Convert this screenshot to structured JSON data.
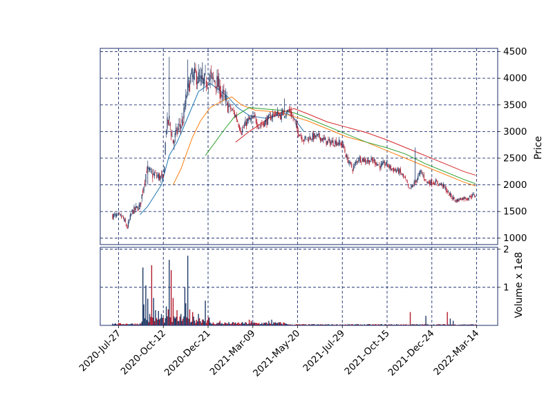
{
  "chart_data": {
    "type": "candlestick",
    "colors": {
      "up": "#1f3a68",
      "down": "#b2182b",
      "grid": "#1a2e6e",
      "frame": "#1a2e6e",
      "ma_short": "#1f77b4",
      "ma_mid": "#ff7f0e",
      "ma_long": "#2ca02c",
      "ma_longest": "#d62728"
    },
    "price_panel": {
      "ylabel": "Price",
      "ylim": [
        880,
        4560
      ],
      "yticks": [
        1000,
        1500,
        2000,
        2500,
        3000,
        3500,
        4000,
        4500
      ],
      "grid": true,
      "grid_style": "dashed"
    },
    "volume_panel": {
      "ylabel": "Volume x 1e8",
      "ylim": [
        0,
        2.05
      ],
      "yticks": [
        1,
        2
      ],
      "grid": true,
      "grid_style": "dashed"
    },
    "x_axis": {
      "start_date": "2020-07-14",
      "end_date": "2022-03-18",
      "tick_labels": [
        "2020-Jul-27",
        "2020-Oct-12",
        "2020-Dec-21",
        "2021-Mar-09",
        "2021-May-20",
        "2021-Jul-29",
        "2021-Oct-15",
        "2021-Dec-24",
        "2022-Mar-14"
      ],
      "tick_positions": [
        10,
        63,
        116,
        169,
        222,
        275,
        328,
        381,
        434
      ]
    },
    "price_path": [
      [
        0,
        1420
      ],
      [
        10,
        1400
      ],
      [
        15,
        1200
      ],
      [
        20,
        1500
      ],
      [
        28,
        1600
      ],
      [
        35,
        2300
      ],
      [
        40,
        2200
      ],
      [
        48,
        2150
      ],
      [
        52,
        2100
      ],
      [
        55,
        3100
      ],
      [
        58,
        3200
      ],
      [
        62,
        2800
      ],
      [
        67,
        3050
      ],
      [
        72,
        3200
      ],
      [
        76,
        3700
      ],
      [
        80,
        4000
      ],
      [
        86,
        4050
      ],
      [
        92,
        3900
      ],
      [
        100,
        4000
      ],
      [
        106,
        3950
      ],
      [
        112,
        3700
      ],
      [
        118,
        3500
      ],
      [
        126,
        3300
      ],
      [
        132,
        3000
      ],
      [
        138,
        3200
      ],
      [
        146,
        3250
      ],
      [
        150,
        3100
      ],
      [
        158,
        3200
      ],
      [
        166,
        3350
      ],
      [
        172,
        3300
      ],
      [
        176,
        3350
      ],
      [
        182,
        3380
      ],
      [
        186,
        3200
      ],
      [
        190,
        3000
      ],
      [
        196,
        2850
      ],
      [
        204,
        2900
      ],
      [
        212,
        2900
      ],
      [
        220,
        2800
      ],
      [
        230,
        2800
      ],
      [
        236,
        2750
      ],
      [
        240,
        2500
      ],
      [
        246,
        2300
      ],
      [
        252,
        2500
      ],
      [
        260,
        2450
      ],
      [
        268,
        2450
      ],
      [
        274,
        2350
      ],
      [
        280,
        2400
      ],
      [
        286,
        2300
      ],
      [
        294,
        2250
      ],
      [
        300,
        2100
      ],
      [
        304,
        1900
      ],
      [
        310,
        2050
      ],
      [
        316,
        2250
      ],
      [
        322,
        2050
      ],
      [
        330,
        2050
      ],
      [
        338,
        2000
      ],
      [
        346,
        1800
      ],
      [
        352,
        1700
      ],
      [
        358,
        1750
      ],
      [
        364,
        1750
      ],
      [
        368,
        1800
      ],
      [
        372,
        1800
      ]
    ],
    "volume_spikes": [
      [
        31,
        1.52
      ],
      [
        32,
        0.55
      ],
      [
        34,
        1.05
      ],
      [
        36,
        0.7
      ],
      [
        38,
        0.3
      ],
      [
        40,
        1.58
      ],
      [
        42,
        0.72
      ],
      [
        44,
        0.4
      ],
      [
        47,
        0.38
      ],
      [
        50,
        0.3
      ],
      [
        52,
        0.2
      ],
      [
        55,
        0.5
      ],
      [
        57,
        0.42
      ],
      [
        58,
        1.72
      ],
      [
        60,
        1.45
      ],
      [
        62,
        0.72
      ],
      [
        66,
        0.4
      ],
      [
        70,
        0.3
      ],
      [
        74,
        1.0
      ],
      [
        75,
        0.58
      ],
      [
        77,
        1.83
      ],
      [
        79,
        0.42
      ],
      [
        82,
        0.35
      ],
      [
        88,
        0.3
      ],
      [
        95,
        0.65
      ],
      [
        110,
        0.12
      ],
      [
        140,
        0.15
      ],
      [
        142,
        0.12
      ],
      [
        160,
        0.12
      ],
      [
        163,
        0.15
      ],
      [
        170,
        0.08
      ],
      [
        305,
        0.35
      ],
      [
        321,
        0.25
      ],
      [
        343,
        0.35
      ],
      [
        346,
        0.18
      ],
      [
        349,
        0.12
      ]
    ],
    "moving_averages": [
      {
        "color_key": "ma_short",
        "points": [
          [
            28,
            1440
          ],
          [
            36,
            1600
          ],
          [
            50,
            2000
          ],
          [
            58,
            2550
          ],
          [
            66,
            2800
          ],
          [
            72,
            3050
          ],
          [
            80,
            3400
          ],
          [
            88,
            3750
          ],
          [
            100,
            3900
          ],
          [
            108,
            3800
          ],
          [
            118,
            3650
          ],
          [
            128,
            3450
          ],
          [
            140,
            3300
          ],
          [
            156,
            3250
          ],
          [
            170,
            3300
          ],
          [
            178,
            3350
          ],
          [
            186,
            3250
          ],
          [
            196,
            3000
          ]
        ]
      },
      {
        "color_key": "ma_mid",
        "points": [
          [
            62,
            2000
          ],
          [
            70,
            2300
          ],
          [
            82,
            2900
          ],
          [
            90,
            3200
          ],
          [
            100,
            3450
          ],
          [
            110,
            3550
          ],
          [
            122,
            3650
          ],
          [
            132,
            3500
          ],
          [
            146,
            3400
          ],
          [
            160,
            3380
          ],
          [
            172,
            3350
          ],
          [
            182,
            3300
          ],
          [
            200,
            3200
          ],
          [
            220,
            3050
          ],
          [
            240,
            2900
          ],
          [
            260,
            2800
          ],
          [
            280,
            2650
          ],
          [
            300,
            2500
          ],
          [
            320,
            2350
          ],
          [
            340,
            2200
          ],
          [
            360,
            2050
          ],
          [
            372,
            1980
          ]
        ]
      },
      {
        "color_key": "ma_long",
        "points": [
          [
            95,
            2550
          ],
          [
            105,
            2800
          ],
          [
            115,
            3050
          ],
          [
            125,
            3280
          ],
          [
            140,
            3450
          ],
          [
            158,
            3420
          ],
          [
            172,
            3400
          ],
          [
            186,
            3350
          ],
          [
            200,
            3250
          ],
          [
            220,
            3100
          ],
          [
            240,
            2950
          ],
          [
            260,
            2800
          ],
          [
            280,
            2700
          ],
          [
            300,
            2580
          ],
          [
            320,
            2400
          ],
          [
            340,
            2250
          ],
          [
            360,
            2100
          ],
          [
            372,
            2020
          ]
        ]
      },
      {
        "color_key": "ma_longest",
        "points": [
          [
            126,
            2800
          ],
          [
            140,
            3000
          ],
          [
            160,
            3250
          ],
          [
            172,
            3350
          ],
          [
            186,
            3430
          ],
          [
            200,
            3330
          ],
          [
            220,
            3180
          ],
          [
            240,
            3080
          ],
          [
            260,
            2980
          ],
          [
            280,
            2850
          ],
          [
            300,
            2700
          ],
          [
            320,
            2550
          ],
          [
            340,
            2400
          ],
          [
            360,
            2250
          ],
          [
            372,
            2180
          ]
        ]
      }
    ]
  }
}
